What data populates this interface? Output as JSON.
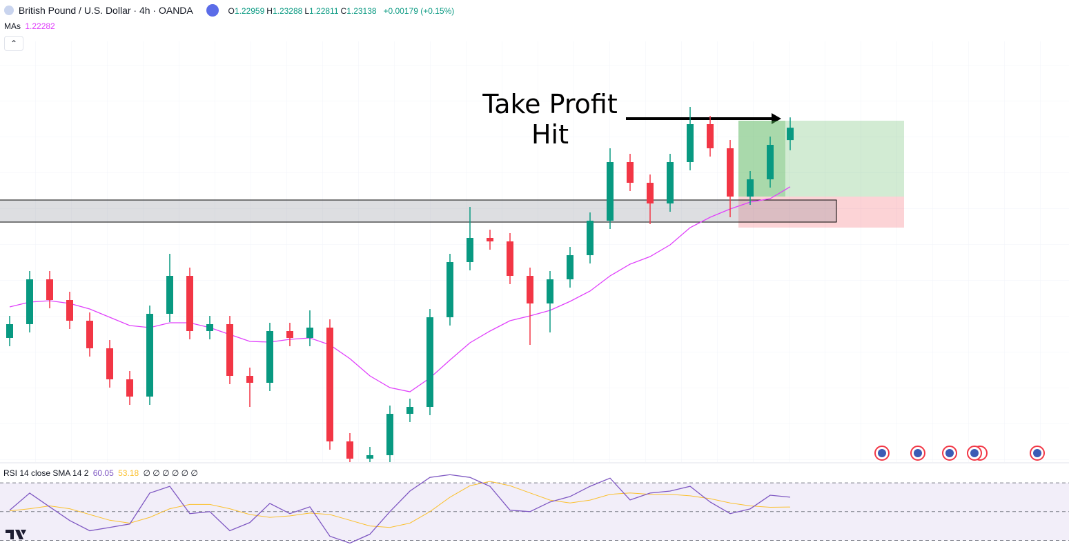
{
  "header": {
    "symbol": "British Pound / U.S. Dollar · 4h · OANDA",
    "ohlc_labels": [
      "O",
      "H",
      "L",
      "C"
    ],
    "change": "+0.00179 (+0.15%)"
  },
  "chart_data": [
    {
      "type": "candlestick",
      "up_color": "#089981",
      "down_color": "#f23645",
      "ylim": [
        1.1829,
        1.2439
      ],
      "open": [
        1.2009,
        1.2029,
        1.2094,
        1.2064,
        1.2034,
        1.1994,
        1.1949,
        1.1924,
        1.2044,
        1.2099,
        1.2019,
        1.2029,
        1.1954,
        1.1944,
        1.2019,
        1.2009,
        1.2024,
        1.1859,
        1.1834,
        1.1839,
        1.1899,
        1.1909,
        1.2039,
        1.2119,
        1.2154,
        1.2149,
        1.2099,
        1.2059,
        1.2094,
        1.2129,
        1.2179,
        1.2264,
        1.2234,
        1.2204,
        1.2264,
        1.2319,
        1.2284,
        1.2214,
        1.2239,
        1.22959
      ],
      "high": [
        1.2041,
        1.2106,
        1.2106,
        1.2076,
        1.2046,
        1.2006,
        1.1961,
        1.2056,
        1.2131,
        1.2111,
        1.2041,
        1.2041,
        1.1966,
        1.2031,
        1.2031,
        1.2049,
        1.2036,
        1.1871,
        1.1851,
        1.1911,
        1.1921,
        1.2051,
        1.2131,
        1.2199,
        1.2166,
        1.2161,
        1.2111,
        1.2106,
        1.2141,
        1.2191,
        1.2284,
        1.2276,
        1.2246,
        1.2276,
        1.2344,
        1.2331,
        1.2296,
        1.2251,
        1.2301,
        1.23288
      ],
      "low": [
        1.1997,
        1.2017,
        1.2052,
        1.2022,
        1.1982,
        1.1937,
        1.1912,
        1.1912,
        1.2032,
        1.2007,
        1.2007,
        1.1942,
        1.1909,
        1.1932,
        1.1997,
        1.1997,
        1.1847,
        1.1829,
        1.1829,
        1.1829,
        1.1887,
        1.1897,
        1.2027,
        1.2107,
        1.2137,
        1.2087,
        1.1999,
        1.2017,
        1.2082,
        1.2117,
        1.2167,
        1.2222,
        1.2174,
        1.2192,
        1.2252,
        1.2272,
        1.2184,
        1.2202,
        1.2227,
        1.22811
      ],
      "close": [
        1.2029,
        1.2094,
        1.2064,
        1.2034,
        1.1994,
        1.1949,
        1.1924,
        1.2044,
        1.2099,
        1.2019,
        1.2029,
        1.1954,
        1.1944,
        1.2019,
        1.2009,
        1.2024,
        1.1859,
        1.1834,
        1.1839,
        1.1899,
        1.1909,
        1.2039,
        1.2119,
        1.2154,
        1.2149,
        1.2099,
        1.2059,
        1.2094,
        1.2129,
        1.2179,
        1.2264,
        1.2234,
        1.2204,
        1.2264,
        1.2319,
        1.2284,
        1.2214,
        1.2239,
        1.2289,
        1.23138
      ],
      "ma": {
        "name": "MAs",
        "color": "#e040fb",
        "values": [
          1.2054,
          1.2061,
          1.2063,
          1.2059,
          1.2051,
          1.2039,
          1.2027,
          1.2024,
          1.2031,
          1.2031,
          1.2024,
          1.2014,
          1.2004,
          1.2003,
          1.2007,
          1.2009,
          1.1999,
          1.1979,
          1.1954,
          1.1937,
          1.1931,
          1.1951,
          1.1977,
          1.2002,
          1.2019,
          1.2034,
          1.2041,
          1.2049,
          1.2062,
          1.2077,
          1.2099,
          1.2116,
          1.2127,
          1.2144,
          1.2169,
          1.2184,
          1.2196,
          1.2206,
          1.2211,
          1.22282
        ]
      },
      "zone": {
        "top": 1.2209,
        "bottom": 1.2177
      },
      "position": {
        "take_profit": 1.2324,
        "entry": 1.2214,
        "stop_loss": 1.2169
      },
      "annotation": [
        "Take Profit",
        "Hit"
      ]
    },
    {
      "type": "line",
      "title": "RSI 14 close SMA 14 2",
      "placeholders": "∅ ∅ ∅ ∅ ∅ ∅",
      "ylim": [
        24,
        83
      ],
      "levels": [
        70,
        50,
        30
      ],
      "series": [
        {
          "color": "#7e57c2",
          "values": [
            51.0,
            62.9,
            53.3,
            43.8,
            36.7,
            39.0,
            41.4,
            62.9,
            67.6,
            48.6,
            50.0,
            36.7,
            42.4,
            55.7,
            48.6,
            53.3,
            32.9,
            28.1,
            34.3,
            50.0,
            64.3,
            73.8,
            75.7,
            73.8,
            67.6,
            51.0,
            50.0,
            56.7,
            60.5,
            67.6,
            73.3,
            58.1,
            62.9,
            64.3,
            67.6,
            56.7,
            48.6,
            51.9,
            61.4,
            60.05
          ]
        },
        {
          "color": "#fbc02d",
          "values": [
            50.5,
            52,
            54,
            52,
            48,
            44,
            42,
            46,
            52,
            55,
            55,
            52,
            48,
            46,
            47,
            49,
            48,
            44,
            40,
            39,
            42,
            50,
            60,
            68,
            71,
            68,
            63,
            58,
            56,
            58,
            62,
            63,
            62,
            62,
            61,
            59,
            56,
            54,
            53,
            53.18
          ]
        }
      ]
    }
  ]
}
